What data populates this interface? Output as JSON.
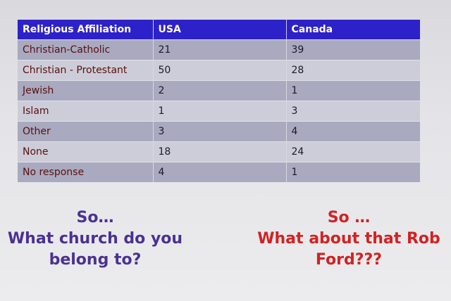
{
  "table": {
    "headers": [
      "Religious Affiliation",
      "USA",
      "Canada"
    ],
    "rows": [
      [
        "Christian-Catholic",
        "21",
        "39"
      ],
      [
        "Christian - Protestant",
        "50",
        "28"
      ],
      [
        "Jewish",
        "2",
        "1"
      ],
      [
        "Islam",
        "1",
        "3"
      ],
      [
        "Other",
        "3",
        "4"
      ],
      [
        "None",
        "18",
        "24"
      ],
      [
        "No response",
        "4",
        "1"
      ]
    ]
  },
  "left_caption": {
    "lines": [
      "So…",
      "What church do you",
      "belong to?"
    ]
  },
  "right_caption": {
    "lines": [
      "So …",
      "What about that Rob",
      "Ford???"
    ]
  }
}
